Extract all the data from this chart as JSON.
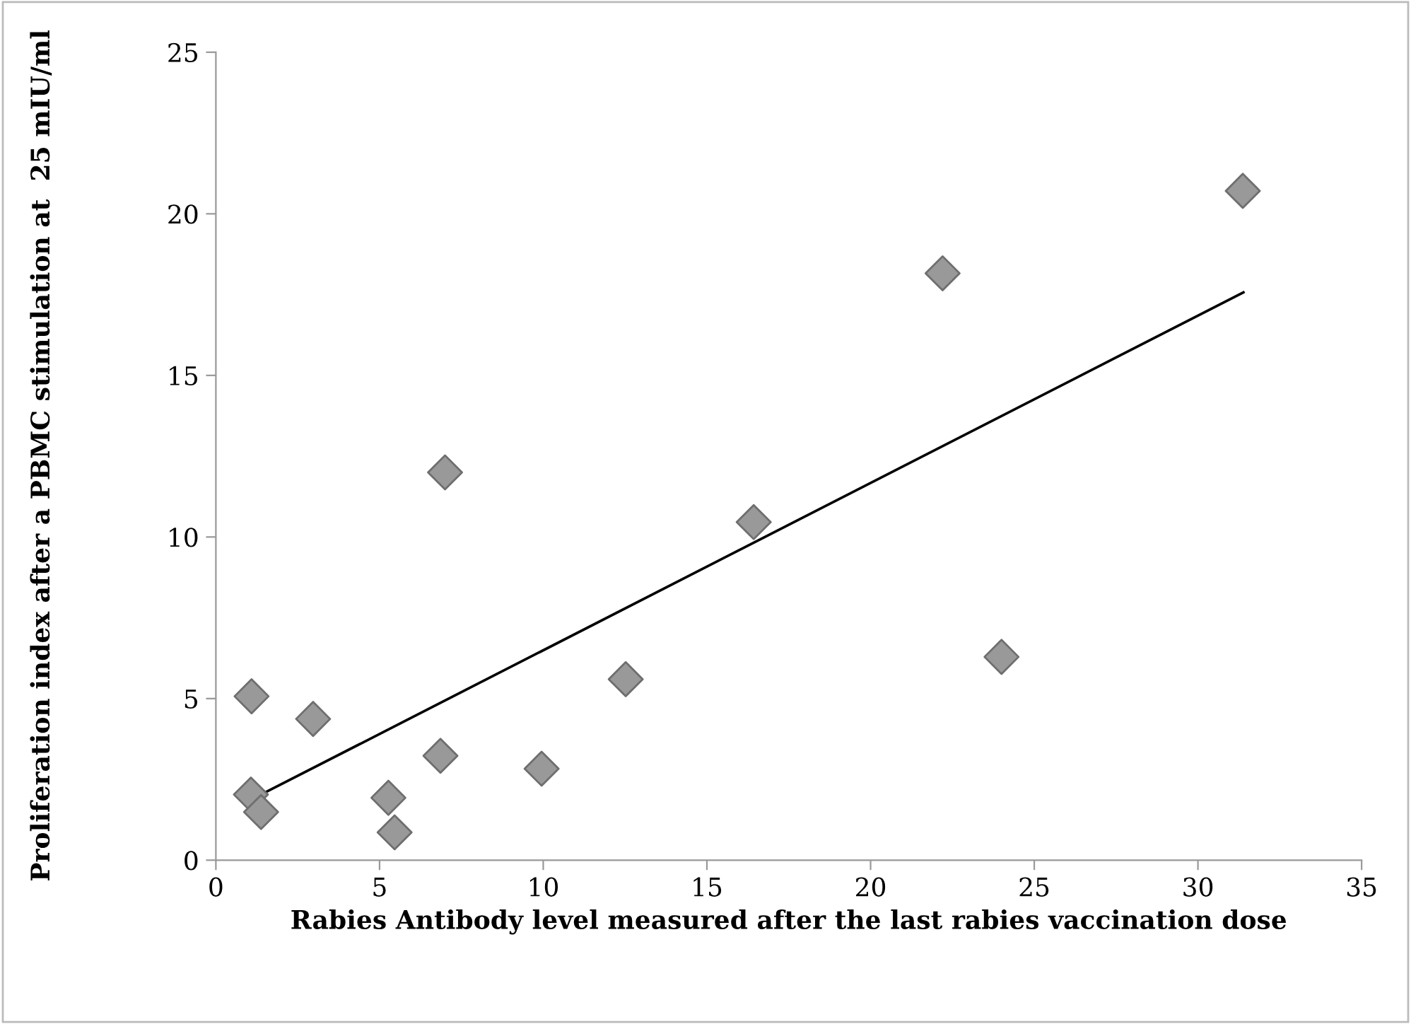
{
  "chart_data": {
    "type": "scatter",
    "xlabel": "Rabies Antibody level measured after the last rabies vaccination dose",
    "ylabel": "Proliferation index after a PBMC stimulation at  25 mIU/ml",
    "xlim": [
      0,
      35
    ],
    "xticks": [
      0,
      5,
      10,
      15,
      20,
      25,
      30,
      35
    ],
    "ylim": [
      0,
      25
    ],
    "yticks": [
      0,
      5,
      10,
      15,
      20,
      25
    ],
    "grid": false,
    "legend": false,
    "series": [
      {
        "color": "#999999",
        "marker": "diamond",
        "x": [
          1.09,
          2.97,
          1.07,
          1.38,
          5.27,
          5.46,
          6.86,
          7.0,
          9.95,
          12.52,
          16.43,
          22.2,
          24.0,
          31.37
        ],
        "values": [
          5.07,
          4.37,
          2.03,
          1.49,
          1.93,
          0.86,
          3.23,
          12.0,
          2.83,
          5.6,
          10.46,
          18.16,
          6.29,
          20.71
        ]
      },
      {
        "type": "line",
        "color": "#000000",
        "marker": "none",
        "line_style": "solid",
        "x": [
          1.09,
          31.39
        ],
        "values": [
          1.88,
          17.57
        ]
      }
    ]
  }
}
